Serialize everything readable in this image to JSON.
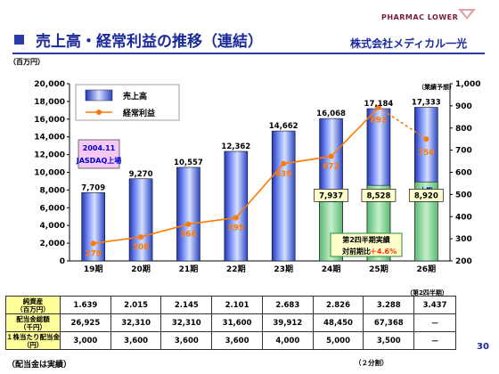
{
  "header": {
    "title": "売上高・経常利益の推移（連結）",
    "company": "株式会社メディカル一光",
    "logo_text": "PHARMAC   LOWER"
  },
  "chart_data": {
    "type": "bar+line",
    "y_left_unit": "（百万円）",
    "ylim_left": [
      0,
      20000
    ],
    "ylim_right": [
      200,
      1000
    ],
    "yticks_left": [
      "20,000",
      "18,000",
      "16,000",
      "14,000",
      "12,000",
      "10,000",
      "8,000",
      "6,000",
      "4,000",
      "2,000",
      "0"
    ],
    "yticks_right": [
      "1,000",
      "900",
      "800",
      "700",
      "600",
      "500",
      "400",
      "300",
      "200"
    ],
    "categories": [
      "19期",
      "20期",
      "21期",
      "22期",
      "23期",
      "24期",
      "25期",
      "26期"
    ],
    "series": [
      {
        "name": "売上高",
        "values": [
          7709,
          9270,
          10557,
          12362,
          14662,
          16068,
          17184,
          17333
        ],
        "labels": [
          "7,709",
          "9,270",
          "10,557",
          "12,362",
          "14,662",
          "16,068",
          "17,184",
          "17,333"
        ]
      },
      {
        "name": "経常利益",
        "values": [
          279,
          308,
          366,
          395,
          639,
          672,
          893,
          750
        ],
        "labels": [
          "279",
          "308",
          "366",
          "395",
          "639",
          "672",
          "893",
          "750"
        ]
      }
    ],
    "first_half": {
      "label": "上期",
      "values": [
        7937,
        8528,
        8920
      ],
      "labels": [
        "7,937",
        "8,528",
        "8,920"
      ]
    },
    "forecast_tag": "（業績予想）",
    "listing_note": [
      "2004.11",
      "JASDAQ上場"
    ],
    "q2_box": [
      "第2四半期実績",
      "対前期比",
      "＋4.6%"
    ]
  },
  "table": {
    "note": "（第2四半期）",
    "rows": [
      {
        "header": [
          "純資産",
          "（百万円）"
        ],
        "cells": [
          "1.639",
          "2.015",
          "2.145",
          "2.101",
          "2.683",
          "2.826",
          "3.288",
          "3.437"
        ]
      },
      {
        "header": [
          "配当金総額",
          "（千円）"
        ],
        "cells": [
          "26,925",
          "32,310",
          "32,310",
          "31,600",
          "39,912",
          "48,450",
          "67,368",
          "－"
        ]
      },
      {
        "header": [
          "１株当たり配当金",
          "（円）"
        ],
        "cells": [
          "3,000",
          "3,600",
          "3,600",
          "3,600",
          "4,000",
          "5,000",
          "3,500",
          "－"
        ]
      }
    ]
  },
  "footer": {
    "left": "（配当金は実績）",
    "right": "（２分割）",
    "page": "30"
  },
  "colors": {
    "title": "#1b2a9a",
    "bar": "#3b59d9",
    "line": "#ff7a00",
    "first_half": "#8fd3a0",
    "listing_box": "#f5c8f5",
    "table_header": "#ffff99"
  }
}
